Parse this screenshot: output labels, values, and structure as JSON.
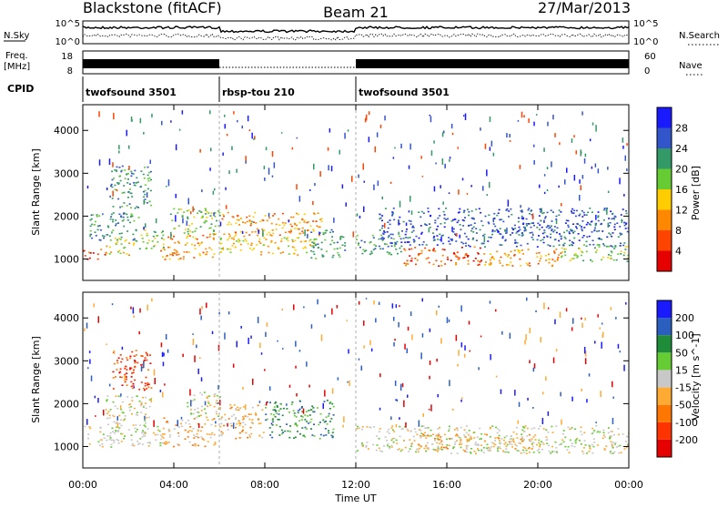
{
  "header": {
    "station": "Blackstone (fitACF)",
    "beam": "Beam 21",
    "date": "27/Mar/2013"
  },
  "top_panels": {
    "nsky_label": "N.Sky",
    "nsearch_label": "N.Search",
    "nsky_ticks": [
      "10^5",
      "10^0"
    ],
    "nsearch_ticks": [
      "10^5",
      "10^0"
    ],
    "freq_label_1": "Freq.",
    "freq_label_2": "[MHz]",
    "freq_ticks": [
      "18",
      "8"
    ],
    "nave_label": "Nave",
    "nave_ticks": [
      "60",
      "0"
    ],
    "cpid_label": "CPID",
    "cpid_segments": [
      {
        "name": "twofsound 3501",
        "start": 0,
        "end": 6
      },
      {
        "name": "rbsp-tou 210",
        "start": 6,
        "end": 12
      },
      {
        "name": "twofsound 3501",
        "start": 12,
        "end": 24
      }
    ]
  },
  "chart_data": [
    {
      "type": "heatmap",
      "title": "",
      "xlabel": "Time UT",
      "ylabel": "Slant Range [km]",
      "xlim": [
        0,
        24
      ],
      "ylim": [
        500,
        4600
      ],
      "x_ticks": [
        "00:00",
        "04:00",
        "08:00",
        "12:00",
        "16:00",
        "20:00",
        "00:00"
      ],
      "y_ticks": [
        "1000",
        "2000",
        "3000",
        "4000"
      ],
      "colorbar_label": "Power [dB]",
      "colorbar_ticks": [
        "4",
        "8",
        "12",
        "16",
        "20",
        "24",
        "28"
      ],
      "colors": [
        "#1a1aff",
        "#3355cc",
        "#339966",
        "#66cc33",
        "#ffcc00",
        "#ff8800",
        "#ff4400",
        "#e60000"
      ],
      "regions": [
        {
          "t0": 0.0,
          "t1": 1.0,
          "r0": 1000,
          "r1": 1250,
          "level": 6
        },
        {
          "t0": 1.0,
          "t1": 2.2,
          "r0": 1100,
          "r1": 1500,
          "level": 4
        },
        {
          "t0": 2.2,
          "t1": 3.6,
          "r0": 1250,
          "r1": 1700,
          "level": 3
        },
        {
          "t0": 0.3,
          "t1": 2.5,
          "r0": 1450,
          "r1": 2100,
          "level": 2
        },
        {
          "t0": 1.2,
          "t1": 3.0,
          "r0": 2200,
          "r1": 3200,
          "level": 2
        },
        {
          "t0": 3.4,
          "t1": 5.8,
          "r0": 1000,
          "r1": 1600,
          "level": 5
        },
        {
          "t0": 3.8,
          "t1": 6.0,
          "r0": 1600,
          "r1": 2200,
          "level": 3
        },
        {
          "t0": 6.0,
          "t1": 10.2,
          "r0": 1100,
          "r1": 1550,
          "level": 4
        },
        {
          "t0": 6.0,
          "t1": 10.5,
          "r0": 1550,
          "r1": 2100,
          "level": 5
        },
        {
          "t0": 10.0,
          "t1": 11.5,
          "r0": 1000,
          "r1": 1700,
          "level": 2
        },
        {
          "t0": 12.0,
          "t1": 14.0,
          "r0": 1100,
          "r1": 1600,
          "level": 2
        },
        {
          "t0": 14.0,
          "t1": 17.5,
          "r0": 850,
          "r1": 1300,
          "level": 6
        },
        {
          "t0": 17.5,
          "t1": 21.0,
          "r0": 850,
          "r1": 1250,
          "level": 5
        },
        {
          "t0": 21.0,
          "t1": 24.0,
          "r0": 950,
          "r1": 1350,
          "level": 3
        },
        {
          "t0": 13.0,
          "t1": 24.0,
          "r0": 1300,
          "r1": 2200,
          "level": 1
        }
      ]
    },
    {
      "type": "heatmap",
      "title": "",
      "xlabel": "Time UT",
      "ylabel": "Slant Range [km]",
      "xlim": [
        0,
        24
      ],
      "ylim": [
        500,
        4600
      ],
      "x_ticks": [
        "00:00",
        "04:00",
        "08:00",
        "12:00",
        "16:00",
        "20:00",
        "00:00"
      ],
      "y_ticks": [
        "1000",
        "2000",
        "3000",
        "4000"
      ],
      "colorbar_label": "Velocity [m s^-1]",
      "colorbar_ticks": [
        "200",
        "100",
        "50",
        "15",
        "-15",
        "-50",
        "-100",
        "-200"
      ],
      "colors": [
        "#1a1aff",
        "#2a5fc0",
        "#1f8c3a",
        "#66cc33",
        "#c8c8c8",
        "#ffaa33",
        "#ff7700",
        "#ff3300",
        "#e60000"
      ],
      "regions": [
        {
          "t0": 0.0,
          "t1": 3.4,
          "r0": 1000,
          "r1": 1500,
          "level": 4
        },
        {
          "t0": 1.0,
          "t1": 3.0,
          "r0": 1500,
          "r1": 2200,
          "level": 4
        },
        {
          "t0": 1.3,
          "t1": 3.0,
          "r0": 2300,
          "r1": 3300,
          "level": 7
        },
        {
          "t0": 3.4,
          "t1": 5.8,
          "r0": 1000,
          "r1": 1700,
          "level": 5
        },
        {
          "t0": 4.5,
          "t1": 6.0,
          "r0": 1700,
          "r1": 2300,
          "level": 4
        },
        {
          "t0": 6.0,
          "t1": 8.0,
          "r0": 1200,
          "r1": 2000,
          "level": 5
        },
        {
          "t0": 8.0,
          "t1": 11.0,
          "r0": 1200,
          "r1": 2100,
          "level": 2
        },
        {
          "t0": 12.0,
          "t1": 24.0,
          "r0": 850,
          "r1": 1500,
          "level": 4
        },
        {
          "t0": 14.5,
          "t1": 20.0,
          "r0": 900,
          "r1": 1300,
          "level": 5
        }
      ]
    }
  ]
}
